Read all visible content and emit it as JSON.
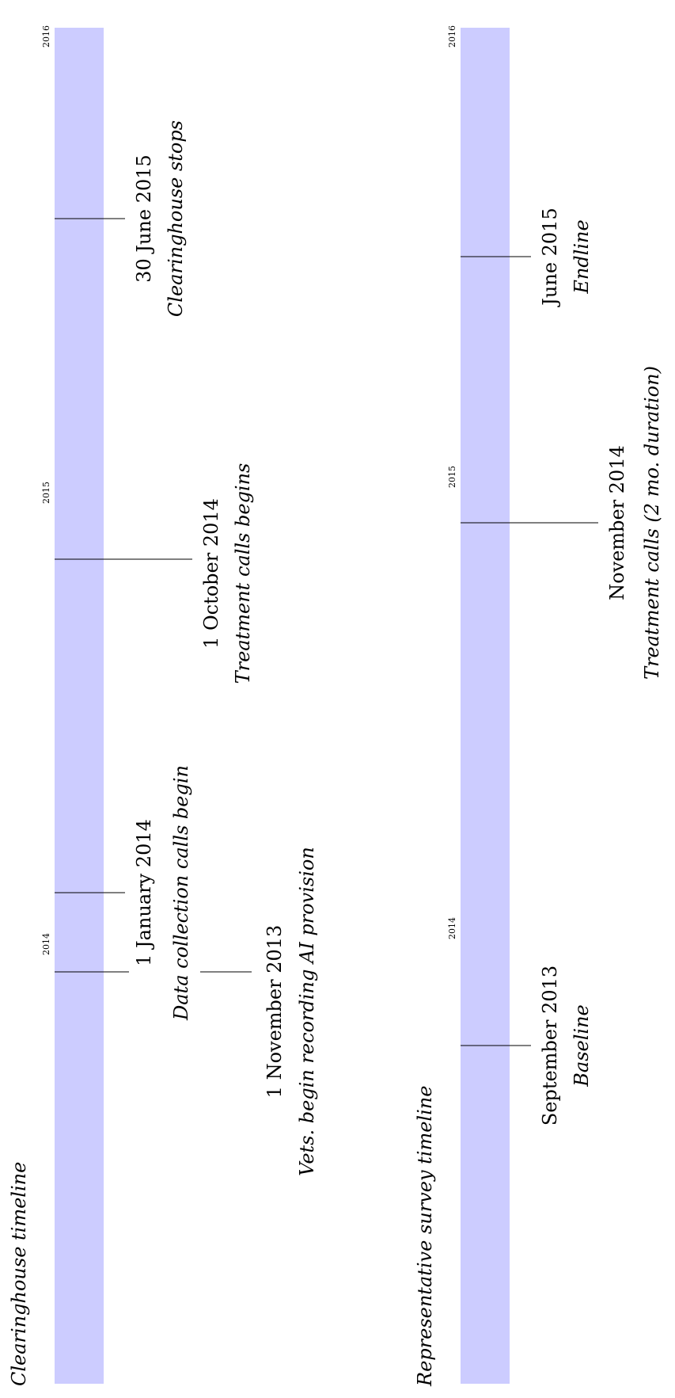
{
  "timelines": [
    {
      "id": "clearinghouse",
      "title": "Clearinghouse timeline",
      "bar_color": "#ccccff",
      "axis_years": [
        "2014",
        "2015",
        "2016"
      ],
      "events": [
        {
          "date_label": "30 June 2015",
          "description": "Clearinghouse stops"
        },
        {
          "date_label": "1 October 2014",
          "description": "Treatment calls begins"
        },
        {
          "date_label": "1 January 2014",
          "description": "Data collection calls begin"
        },
        {
          "date_label": "1 November 2013",
          "description": "Vets. begin recording AI provision"
        }
      ]
    },
    {
      "id": "survey",
      "title": "Representative survey timeline",
      "bar_color": "#ccccff",
      "axis_years": [
        "2014",
        "2015",
        "2016"
      ],
      "events": [
        {
          "date_label": "June 2015",
          "description": "Endline"
        },
        {
          "date_label": "November 2014",
          "description": "Treatment calls (2 mo. duration)"
        },
        {
          "date_label": "September 2013",
          "description": "Baseline"
        }
      ]
    }
  ]
}
